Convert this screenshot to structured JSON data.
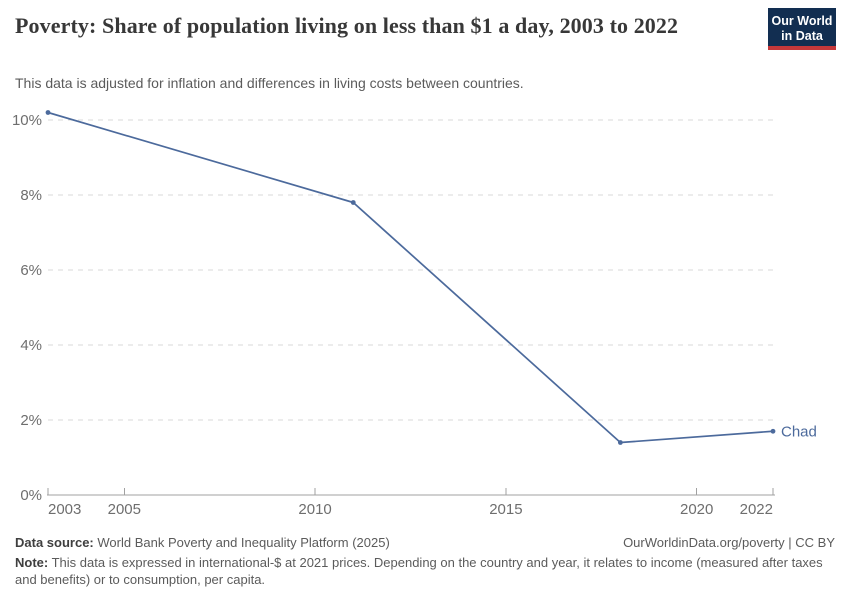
{
  "header": {
    "title": "Poverty: Share of population living on less than $1 a day, 2003 to 2022",
    "subtitle": "This data is adjusted for inflation and differences in living costs between countries.",
    "logo": {
      "line1": "Our World",
      "line2": "in Data",
      "bg_color": "#122e51",
      "accent_color": "#c5383a"
    }
  },
  "chart_data": {
    "type": "line",
    "title": "Poverty: Share of population living on less than $1 a day, 2003 to 2022",
    "x": [
      2003,
      2011,
      2018,
      2022
    ],
    "series": [
      {
        "name": "Chad",
        "color": "#4c6a9c",
        "values": [
          10.2,
          7.8,
          1.4,
          1.7
        ]
      }
    ],
    "end_label": "Chad",
    "x_ticks": [
      2003,
      2005,
      2010,
      2015,
      2020,
      2022
    ],
    "y_ticks": [
      0,
      2,
      4,
      6,
      8,
      10
    ],
    "y_tick_suffix": "%",
    "xlim": [
      2003,
      2022
    ],
    "ylim": [
      0,
      10.7
    ],
    "grid": true,
    "grid_color": "#dadada",
    "axis_color": "#a1a1a1",
    "tick_label_color": "#6e6e6e",
    "legend_position": "end-of-line"
  },
  "footer": {
    "datasource_label": "Data source:",
    "datasource": "World Bank Poverty and Inequality Platform (2025)",
    "attribution": "OurWorldinData.org/poverty | CC BY",
    "note_label": "Note:",
    "note": "This data is expressed in international-$ at 2021 prices. Depending on the country and year, it relates to income (measured after taxes and benefits) or to consumption, per capita."
  }
}
